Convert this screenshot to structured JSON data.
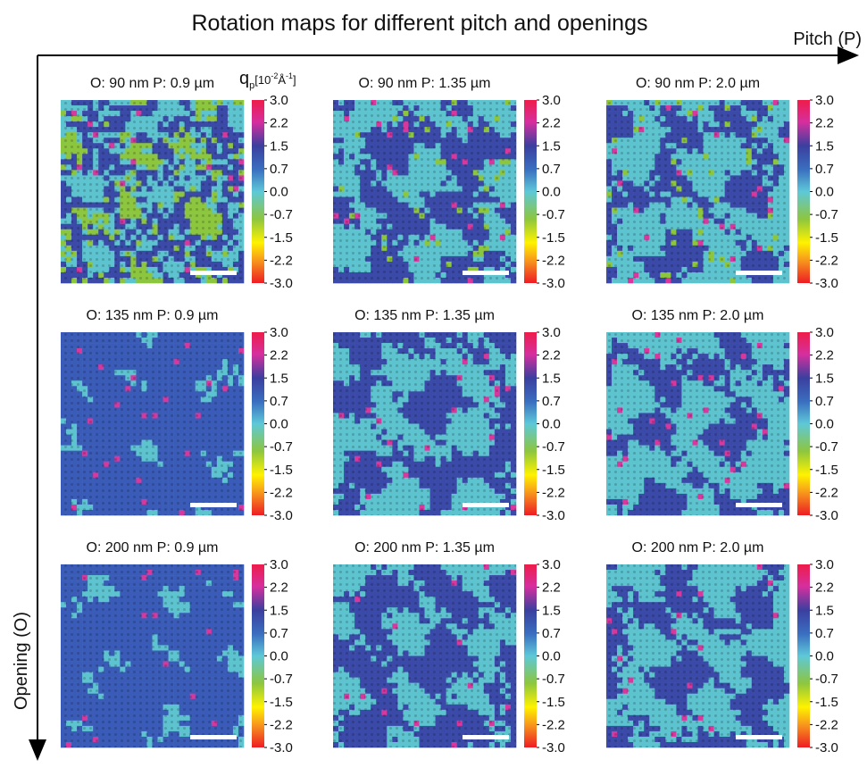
{
  "title": "Rotation maps for different pitch and openings",
  "x_axis_label": "Pitch (P)",
  "y_axis_label": "Opening (O)",
  "colorbar_label": {
    "symbol": "q",
    "subscript": "p",
    "unit_open": "[10",
    "exponent": "-2",
    "unit": "Å",
    "unit_exponent": "-1",
    "unit_close": "]"
  },
  "colorbar_ticks": [
    "3.0",
    "2.2",
    "1.5",
    "0.7",
    "0.0",
    "-0.7",
    "-1.5",
    "-2.2",
    "-3.0"
  ],
  "panels": [
    {
      "title": "O: 90 nm P: 0.9 µm"
    },
    {
      "title": "O: 90 nm P: 1.35 µm"
    },
    {
      "title": "O: 90 nm P: 2.0 µm"
    },
    {
      "title": "O: 135 nm P: 0.9 µm"
    },
    {
      "title": "O: 135 nm P: 1.35 µm"
    },
    {
      "title": "O: 135 nm P: 2.0 µm"
    },
    {
      "title": "O: 200 nm P: 0.9 µm"
    },
    {
      "title": "O: 200 nm P: 1.35 µm"
    },
    {
      "title": "O: 200 nm P: 2.0 µm"
    }
  ]
}
